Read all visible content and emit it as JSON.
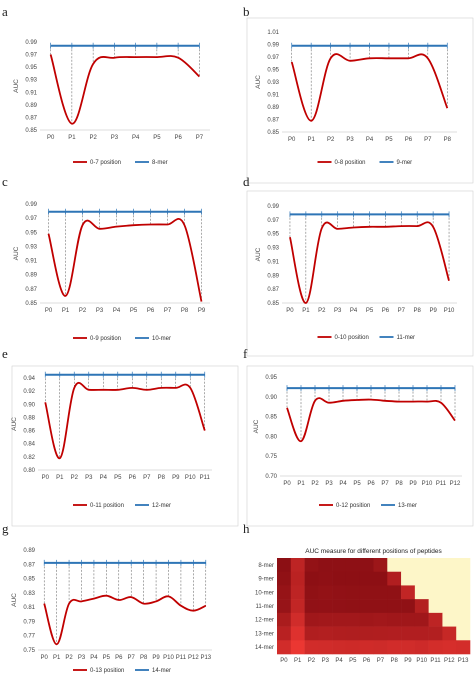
{
  "panels": [
    {
      "letter": "a",
      "chart_data": {
        "type": "line",
        "ylabel": "AUC",
        "ylim": [
          0.85,
          0.99
        ],
        "yticks": [
          0.85,
          0.87,
          0.89,
          0.91,
          0.93,
          0.95,
          0.97,
          0.99
        ],
        "categories": [
          "P0",
          "P1",
          "P2",
          "P3",
          "P4",
          "P5",
          "P6",
          "P7"
        ],
        "series": [
          {
            "name": "0-7 position",
            "color": "#c00000",
            "values": [
              0.97,
              0.86,
              0.955,
              0.965,
              0.966,
              0.966,
              0.965,
              0.935
            ]
          },
          {
            "name": "8-mer",
            "color": "#2e75b6",
            "values": [
              0.984,
              0.984,
              0.984,
              0.984,
              0.984,
              0.984,
              0.984,
              0.984
            ]
          }
        ]
      }
    },
    {
      "letter": "b",
      "chart_data": {
        "type": "line",
        "ylabel": "AUC",
        "ylim": [
          0.85,
          1.01
        ],
        "yticks": [
          0.85,
          0.87,
          0.89,
          0.91,
          0.93,
          0.95,
          0.97,
          0.99,
          1.01
        ],
        "categories": [
          "P0",
          "P1",
          "P2",
          "P3",
          "P4",
          "P5",
          "P6",
          "P7",
          "P8"
        ],
        "series": [
          {
            "name": "0-8 position",
            "color": "#c00000",
            "values": [
              0.962,
              0.868,
              0.968,
              0.964,
              0.968,
              0.968,
              0.968,
              0.968,
              0.888
            ]
          },
          {
            "name": "9-mer",
            "color": "#2e75b6",
            "values": [
              0.988,
              0.988,
              0.988,
              0.988,
              0.988,
              0.988,
              0.988,
              0.988,
              0.988
            ]
          }
        ]
      }
    },
    {
      "letter": "c",
      "chart_data": {
        "type": "line",
        "ylabel": "AUC",
        "ylim": [
          0.85,
          0.99
        ],
        "yticks": [
          0.85,
          0.87,
          0.89,
          0.91,
          0.93,
          0.95,
          0.97,
          0.99
        ],
        "categories": [
          "P0",
          "P1",
          "P2",
          "P3",
          "P4",
          "P5",
          "P6",
          "P7",
          "P8",
          "P9"
        ],
        "series": [
          {
            "name": "0-9 position",
            "color": "#c00000",
            "values": [
              0.948,
              0.86,
              0.96,
              0.955,
              0.958,
              0.96,
              0.961,
              0.961,
              0.96,
              0.852
            ]
          },
          {
            "name": "10-mer",
            "color": "#2e75b6",
            "values": [
              0.979,
              0.979,
              0.979,
              0.979,
              0.979,
              0.979,
              0.979,
              0.979,
              0.979,
              0.979
            ]
          }
        ]
      }
    },
    {
      "letter": "d",
      "chart_data": {
        "type": "line",
        "ylabel": "AUC",
        "ylim": [
          0.85,
          0.99
        ],
        "yticks": [
          0.85,
          0.87,
          0.89,
          0.91,
          0.93,
          0.95,
          0.97,
          0.99
        ],
        "categories": [
          "P0",
          "P1",
          "P2",
          "P3",
          "P4",
          "P5",
          "P6",
          "P7",
          "P8",
          "P9",
          "P10"
        ],
        "series": [
          {
            "name": "0-10 position",
            "color": "#c00000",
            "values": [
              0.945,
              0.85,
              0.958,
              0.957,
              0.959,
              0.96,
              0.96,
              0.961,
              0.961,
              0.96,
              0.882
            ]
          },
          {
            "name": "11-mer",
            "color": "#2e75b6",
            "values": [
              0.978,
              0.978,
              0.978,
              0.978,
              0.978,
              0.978,
              0.978,
              0.978,
              0.978,
              0.978,
              0.978
            ]
          }
        ]
      }
    },
    {
      "letter": "e",
      "chart_data": {
        "type": "line",
        "ylabel": "AUC",
        "ylim": [
          0.8,
          0.94
        ],
        "yticks": [
          0.8,
          0.82,
          0.84,
          0.86,
          0.88,
          0.9,
          0.92,
          0.94
        ],
        "categories": [
          "P0",
          "P1",
          "P2",
          "P3",
          "P4",
          "P5",
          "P6",
          "P7",
          "P8",
          "P9",
          "P10",
          "P11"
        ],
        "series": [
          {
            "name": "0-11 position",
            "color": "#c00000",
            "values": [
              0.903,
              0.818,
              0.925,
              0.922,
              0.922,
              0.922,
              0.925,
              0.922,
              0.925,
              0.925,
              0.925,
              0.86
            ]
          },
          {
            "name": "12-mer",
            "color": "#2e75b6",
            "values": [
              0.945,
              0.945,
              0.945,
              0.945,
              0.945,
              0.945,
              0.945,
              0.945,
              0.945,
              0.945,
              0.945,
              0.945
            ]
          }
        ]
      }
    },
    {
      "letter": "f",
      "chart_data": {
        "type": "line",
        "ylabel": "AUC",
        "ylim": [
          0.7,
          0.95
        ],
        "yticks": [
          0.7,
          0.75,
          0.8,
          0.85,
          0.9,
          0.95
        ],
        "categories": [
          "P0",
          "P1",
          "P2",
          "P3",
          "P4",
          "P5",
          "P6",
          "P7",
          "P8",
          "P9",
          "P10",
          "P11",
          "P12"
        ],
        "series": [
          {
            "name": "0-12 position",
            "color": "#c00000",
            "values": [
              0.872,
              0.788,
              0.89,
              0.885,
              0.89,
              0.892,
              0.893,
              0.89,
              0.888,
              0.888,
              0.888,
              0.885,
              0.84
            ]
          },
          {
            "name": "13-mer",
            "color": "#2e75b6",
            "values": [
              0.922,
              0.922,
              0.922,
              0.922,
              0.922,
              0.922,
              0.922,
              0.922,
              0.922,
              0.922,
              0.922,
              0.922,
              0.922
            ]
          }
        ]
      }
    },
    {
      "letter": "g",
      "chart_data": {
        "type": "line",
        "ylabel": "AUC",
        "ylim": [
          0.75,
          0.89
        ],
        "yticks": [
          0.75,
          0.77,
          0.79,
          0.81,
          0.83,
          0.85,
          0.87,
          0.89
        ],
        "categories": [
          "P0",
          "P1",
          "P2",
          "P3",
          "P4",
          "P5",
          "P6",
          "P7",
          "P8",
          "P9",
          "P10",
          "P11",
          "P12",
          "P13"
        ],
        "series": [
          {
            "name": "0-13 position",
            "color": "#c00000",
            "values": [
              0.815,
              0.758,
              0.815,
              0.818,
              0.822,
              0.826,
              0.82,
              0.824,
              0.815,
              0.818,
              0.825,
              0.812,
              0.805,
              0.812
            ]
          },
          {
            "name": "14-mer",
            "color": "#2e75b6",
            "values": [
              0.872,
              0.872,
              0.872,
              0.872,
              0.872,
              0.872,
              0.872,
              0.872,
              0.872,
              0.872,
              0.872,
              0.872,
              0.872,
              0.872
            ]
          }
        ]
      }
    }
  ],
  "heatmap": {
    "letter": "h",
    "chart_data": {
      "type": "heatmap",
      "title": "AUC measure for different positions of peptides",
      "rows": [
        "8-mer",
        "9-mer",
        "10-mer",
        "11-mer",
        "12-mer",
        "13-mer",
        "14-mer"
      ],
      "cols": [
        "P0",
        "P1",
        "P2",
        "P3",
        "P4",
        "P5",
        "P6",
        "P7",
        "P8",
        "P9",
        "P10",
        "P11",
        "P12",
        "P13"
      ],
      "values": [
        [
          0.97,
          0.86,
          0.955,
          0.965,
          0.966,
          0.966,
          0.965,
          0.935,
          null,
          null,
          null,
          null,
          null,
          null
        ],
        [
          0.962,
          0.868,
          0.968,
          0.964,
          0.968,
          0.968,
          0.968,
          0.968,
          0.888,
          null,
          null,
          null,
          null,
          null
        ],
        [
          0.948,
          0.86,
          0.96,
          0.955,
          0.958,
          0.96,
          0.961,
          0.961,
          0.96,
          0.852,
          null,
          null,
          null,
          null
        ],
        [
          0.945,
          0.85,
          0.958,
          0.957,
          0.959,
          0.96,
          0.96,
          0.961,
          0.961,
          0.96,
          0.882,
          null,
          null,
          null
        ],
        [
          0.903,
          0.818,
          0.925,
          0.922,
          0.922,
          0.922,
          0.925,
          0.922,
          0.925,
          0.925,
          0.925,
          0.86,
          null,
          null
        ],
        [
          0.872,
          0.788,
          0.89,
          0.885,
          0.89,
          0.892,
          0.893,
          0.89,
          0.888,
          0.888,
          0.888,
          0.885,
          0.84,
          null
        ],
        [
          0.815,
          0.758,
          0.815,
          0.818,
          0.822,
          0.826,
          0.82,
          0.824,
          0.815,
          0.818,
          0.825,
          0.812,
          0.805,
          0.812
        ]
      ],
      "empty_color": "#fdf6c8"
    }
  }
}
